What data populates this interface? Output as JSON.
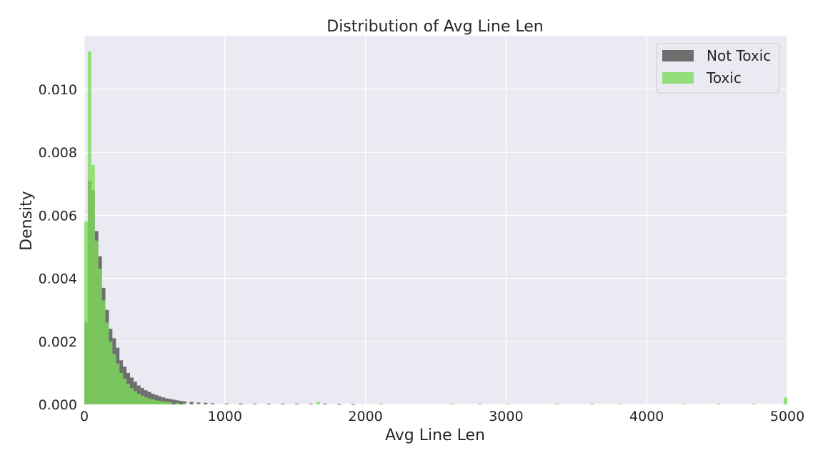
{
  "chart_data": {
    "type": "bar",
    "title": "Distribution of Avg Line Len",
    "xlabel": "Avg Line Len",
    "ylabel": "Density",
    "xlim": [
      0,
      5000
    ],
    "ylim": [
      0,
      0.0117
    ],
    "xticks": [
      "0",
      "1000",
      "2000",
      "3000",
      "4000",
      "5000"
    ],
    "yticks": [
      "0.000",
      "0.002",
      "0.004",
      "0.006",
      "0.008",
      "0.010"
    ],
    "grid": true,
    "legend_position": "top-right",
    "bin_width": 25,
    "series": [
      {
        "name": "Not Toxic",
        "color": "#6e6e6e",
        "opacity": 1.0,
        "x": [
          0,
          25,
          50,
          75,
          100,
          125,
          150,
          175,
          200,
          225,
          250,
          275,
          300,
          325,
          350,
          375,
          400,
          425,
          450,
          475,
          500,
          525,
          550,
          575,
          600,
          625,
          650,
          675,
          700,
          750,
          800,
          850,
          900,
          1000,
          1100,
          1200,
          1300,
          1400,
          1500,
          1600,
          1700,
          1800,
          1900
        ],
        "values": [
          0.0026,
          0.0071,
          0.0068,
          0.0055,
          0.0047,
          0.0037,
          0.003,
          0.0024,
          0.0021,
          0.0018,
          0.0014,
          0.0012,
          0.001,
          0.00085,
          0.00072,
          0.0006,
          0.00052,
          0.00045,
          0.0004,
          0.00034,
          0.0003,
          0.00026,
          0.00022,
          0.00019,
          0.00017,
          0.00015,
          0.00013,
          0.00011,
          0.0001,
          8e-05,
          6e-05,
          5e-05,
          4e-05,
          3e-05,
          3e-05,
          2e-05,
          2e-05,
          2e-05,
          2e-05,
          2e-05,
          2e-05,
          1e-05,
          1e-05
        ]
      },
      {
        "name": "Toxic",
        "color": "#7ddc5a",
        "opacity": 0.8,
        "x": [
          0,
          25,
          50,
          75,
          100,
          125,
          150,
          175,
          200,
          225,
          250,
          275,
          300,
          325,
          350,
          375,
          400,
          425,
          450,
          475,
          500,
          525,
          550,
          575,
          600,
          650,
          700,
          800,
          900,
          1000,
          1650,
          2100,
          2600,
          2800,
          3000,
          3350,
          3600,
          3800,
          4250,
          4500,
          4750,
          4975
        ],
        "values": [
          0.0058,
          0.0112,
          0.0076,
          0.0052,
          0.0043,
          0.0033,
          0.0026,
          0.002,
          0.0016,
          0.0013,
          0.001,
          0.00082,
          0.00065,
          0.00052,
          0.00042,
          0.00034,
          0.00028,
          0.00023,
          0.00019,
          0.00016,
          0.00013,
          0.00011,
          9e-05,
          8e-05,
          7e-05,
          5e-05,
          4e-05,
          3e-05,
          2e-05,
          2e-05,
          8e-05,
          3e-05,
          3e-05,
          3e-05,
          3e-05,
          3e-05,
          3e-05,
          3e-05,
          3e-05,
          3e-05,
          3e-05,
          0.00022
        ]
      }
    ]
  }
}
